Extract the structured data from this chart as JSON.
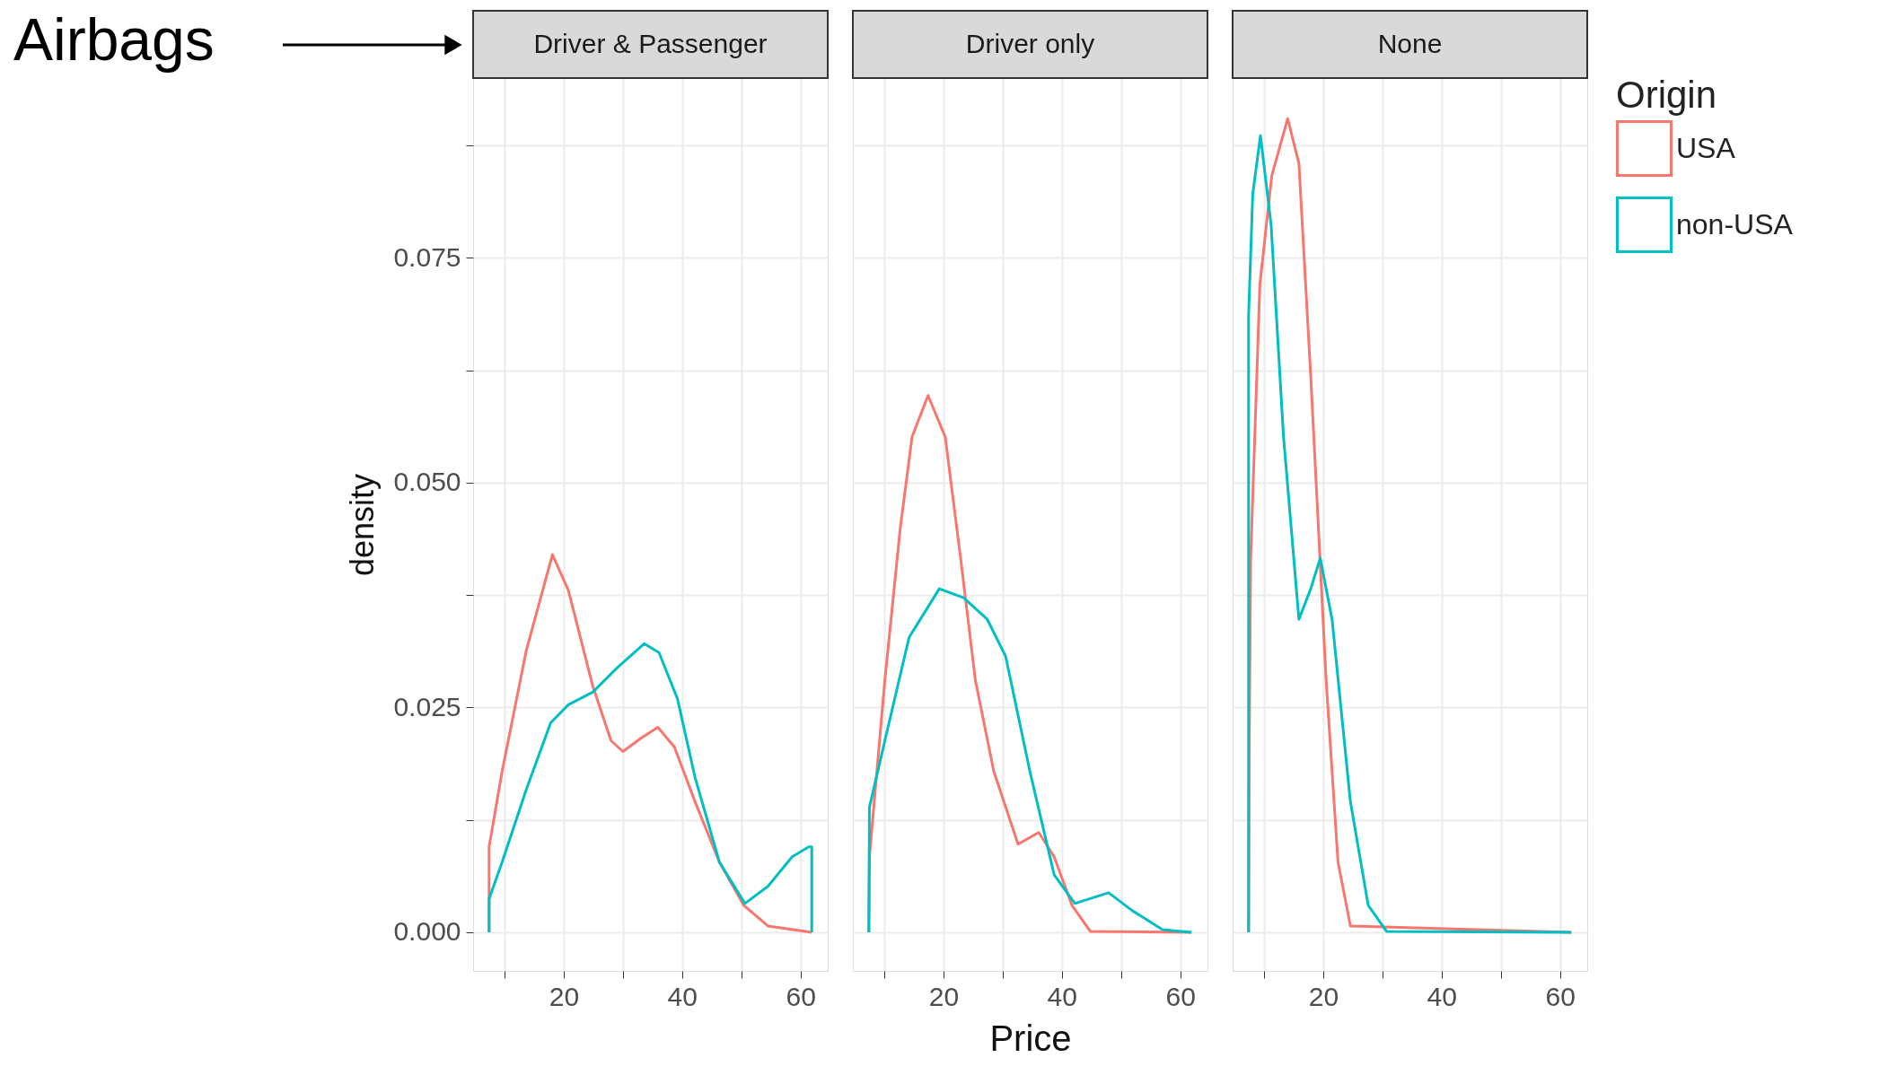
{
  "chart_data": [
    {
      "type": "line",
      "title": "Driver & Passenger",
      "ylabel": "density",
      "legend": "right",
      "legend_title": "Origin",
      "annotations": [
        "Airbags"
      ],
      "xlim": [
        4.7,
        64.6
      ],
      "ylim": [
        -0.0043,
        0.095
      ],
      "xticks": [
        {
          "value": 10,
          "label": null
        },
        20,
        {
          "value": 30,
          "label": null
        },
        40,
        {
          "value": 50,
          "label": null
        },
        60
      ],
      "yticks": [
        {
          "value": 0,
          "label": "0.000"
        },
        {
          "value": 0.0125,
          "label": null
        },
        {
          "value": 0.025,
          "label": "0.025"
        },
        {
          "value": 0.0375,
          "label": null
        },
        {
          "value": 0.05,
          "label": "0.050"
        },
        {
          "value": 0.0625,
          "label": null
        },
        {
          "value": 0.075,
          "label": "0.075"
        },
        {
          "value": 0.0875,
          "label": null
        }
      ],
      "grid": true,
      "series": [
        {
          "name": "USA",
          "color": "#f8766d",
          "x": [
            7.4,
            7.4,
            9.6,
            13.7,
            18.1,
            20.8,
            24.9,
            28,
            30,
            33.1,
            35.9,
            38.7,
            42.2,
            46.3,
            50.4,
            54.5,
            61.9
          ],
          "values": [
            0,
            0.0095,
            0.0179,
            0.0314,
            0.042,
            0.038,
            0.0274,
            0.0213,
            0.0201,
            0.0216,
            0.0228,
            0.0206,
            0.0145,
            0.0078,
            0.003,
            0.0007,
            0
          ]
        },
        {
          "name": "non-USA",
          "color": "#00bfc4",
          "x": [
            7.4,
            7.4,
            9.6,
            13.7,
            17.8,
            20.8,
            24.9,
            29,
            33.6,
            36.1,
            39.2,
            42.2,
            46.3,
            50.6,
            54.5,
            58.6,
            61.4,
            61.9,
            61.9
          ],
          "values": [
            0,
            0.0037,
            0.0078,
            0.0159,
            0.0233,
            0.0253,
            0.0267,
            0.0294,
            0.0321,
            0.0311,
            0.026,
            0.0172,
            0.0078,
            0.0032,
            0.0051,
            0.0084,
            0.0095,
            0.0095,
            0
          ]
        }
      ]
    },
    {
      "type": "line",
      "title": "Driver only",
      "xlabel": "Price",
      "tick_labels": "x",
      "xlim": [
        4.7,
        64.6
      ],
      "ylim": [
        -0.0043,
        0.095
      ],
      "xticks": [
        {
          "value": 10,
          "label": null
        },
        20,
        {
          "value": 30,
          "label": null
        },
        40,
        {
          "value": 50,
          "label": null
        },
        60
      ],
      "yticks": [
        {
          "value": 0,
          "label": null
        },
        {
          "value": 0.0125,
          "label": null
        },
        {
          "value": 0.025,
          "label": null
        },
        {
          "value": 0.0375,
          "label": null
        },
        {
          "value": 0.05,
          "label": null
        },
        {
          "value": 0.0625,
          "label": null
        },
        {
          "value": 0.075,
          "label": null
        },
        {
          "value": 0.0875,
          "label": null
        }
      ],
      "grid": true,
      "series": [
        {
          "color": "#f8766d",
          "x": [
            7.4,
            7.5,
            10.1,
            12.7,
            14.7,
            17.4,
            20.3,
            22.9,
            25.4,
            28.5,
            32.6,
            36.1,
            38.7,
            41.7,
            44.8,
            61.9
          ],
          "values": [
            0,
            0.0084,
            0.028,
            0.0449,
            0.0551,
            0.0597,
            0.0551,
            0.0416,
            0.028,
            0.0179,
            0.0098,
            0.0111,
            0.0084,
            0.003,
            0.0001,
            0
          ]
        },
        {
          "color": "#00bfc4",
          "x": [
            7.4,
            7.5,
            10.1,
            14.2,
            19.3,
            23.4,
            27.4,
            30.5,
            34.6,
            38.7,
            42.2,
            47.9,
            51.9,
            57,
            61.9
          ],
          "values": [
            0,
            0.0139,
            0.0213,
            0.0328,
            0.0382,
            0.0372,
            0.0348,
            0.0307,
            0.0179,
            0.0064,
            0.0032,
            0.0044,
            0.0024,
            0.0003,
            0
          ]
        }
      ]
    },
    {
      "type": "line",
      "title": "None",
      "tick_labels": "x",
      "xlim": [
        4.7,
        64.6
      ],
      "ylim": [
        -0.0043,
        0.095
      ],
      "xticks": [
        {
          "value": 10,
          "label": null
        },
        20,
        {
          "value": 30,
          "label": null
        },
        40,
        {
          "value": 50,
          "label": null
        },
        60
      ],
      "yticks": [
        {
          "value": 0,
          "label": null
        },
        {
          "value": 0.0125,
          "label": null
        },
        {
          "value": 0.025,
          "label": null
        },
        {
          "value": 0.0375,
          "label": null
        },
        {
          "value": 0.05,
          "label": null
        },
        {
          "value": 0.0625,
          "label": null
        },
        {
          "value": 0.075,
          "label": null
        },
        {
          "value": 0.0875,
          "label": null
        }
      ],
      "grid": true,
      "series": [
        {
          "color": "#f8766d",
          "x": [
            7.4,
            7.5,
            7.75,
            9.3,
            11.3,
            14,
            15.9,
            17.9,
            20.5,
            22.5,
            24.6,
            61.9
          ],
          "values": [
            0,
            0.02,
            0.0416,
            0.072,
            0.0841,
            0.0905,
            0.0855,
            0.0618,
            0.028,
            0.0078,
            0.0007,
            0
          ]
        },
        {
          "color": "#00bfc4",
          "x": [
            7.4,
            7.4,
            8.1,
            9.4,
            11.2,
            13.3,
            15.9,
            17.9,
            19.5,
            21.5,
            24.6,
            27.6,
            30.7,
            61.9
          ],
          "values": [
            0,
            0.0686,
            0.0821,
            0.0886,
            0.0787,
            0.0551,
            0.0348,
            0.0382,
            0.0416,
            0.0348,
            0.0145,
            0.003,
            0.0001,
            0
          ]
        }
      ]
    }
  ]
}
